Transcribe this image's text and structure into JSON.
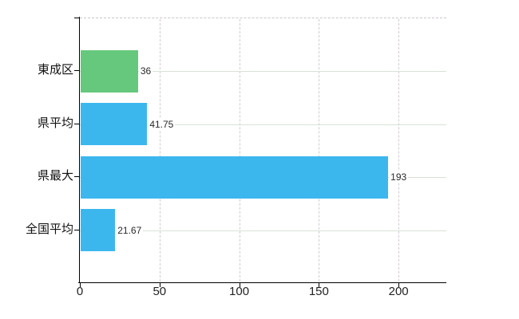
{
  "chart_data": {
    "type": "bar",
    "orientation": "horizontal",
    "title": "",
    "xlabel": "",
    "ylabel": "",
    "categories": [
      "東成区",
      "県平均",
      "県最大",
      "全国平均"
    ],
    "values": [
      36,
      41.75,
      193,
      21.67
    ],
    "value_labels": [
      "36",
      "41.75",
      "193",
      "21.67"
    ],
    "bar_colors": [
      "#65c87c",
      "#3cb7ee",
      "#3cb7ee",
      "#3cb7ee"
    ],
    "x_ticks": [
      0,
      50,
      100,
      150,
      200
    ],
    "x_tick_labels": [
      "0",
      "50",
      "100",
      "150",
      "200"
    ],
    "xlim": [
      0,
      230
    ],
    "legend": "none",
    "grid": {
      "vertical_style": "dashed",
      "horizontal_style": "solid",
      "top_border_style": "dashed"
    },
    "palette": {
      "bar_blue": "#3cb7ee",
      "bar_green": "#65c87c",
      "axis": "#000000",
      "grid_vertical": "#d2ccd2",
      "grid_horizontal": "#d8e1d8",
      "top_border": "#ccc5cc",
      "text": "#111111",
      "value_text": "#2a2a2a"
    }
  }
}
